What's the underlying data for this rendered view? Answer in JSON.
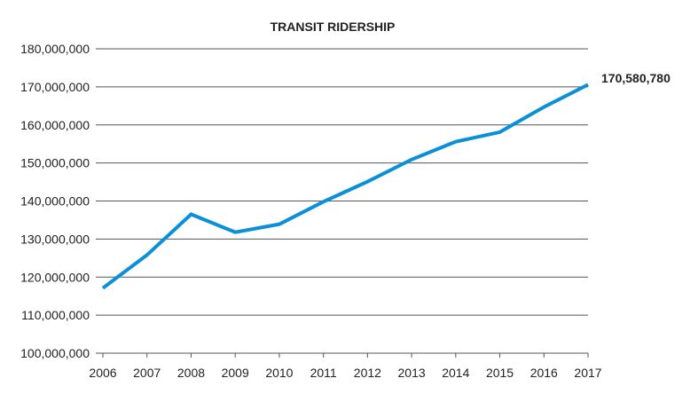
{
  "chart_data": {
    "type": "line",
    "title": "TRANSIT RIDERSHIP",
    "xlabel": "",
    "ylabel": "",
    "categories": [
      "2006",
      "2007",
      "2008",
      "2009",
      "2010",
      "2011",
      "2012",
      "2013",
      "2014",
      "2015",
      "2016",
      "2017"
    ],
    "series": [
      {
        "name": "Transit Ridership",
        "color": "#0a8fd8",
        "values": [
          117100000,
          125800000,
          136500000,
          131800000,
          133900000,
          139800000,
          145100000,
          150900000,
          155600000,
          158100000,
          164700000,
          170580780
        ]
      }
    ],
    "ylim": [
      100000000,
      180000000
    ],
    "yticks": [
      100000000,
      110000000,
      120000000,
      130000000,
      140000000,
      150000000,
      160000000,
      170000000,
      180000000
    ],
    "ytick_labels": [
      "100,000,000",
      "110,000,000",
      "120,000,000",
      "130,000,000",
      "140,000,000",
      "150,000,000",
      "160,000,000",
      "170,000,000",
      "180,000,000"
    ],
    "grid": true,
    "annotation": "170,580,780"
  }
}
